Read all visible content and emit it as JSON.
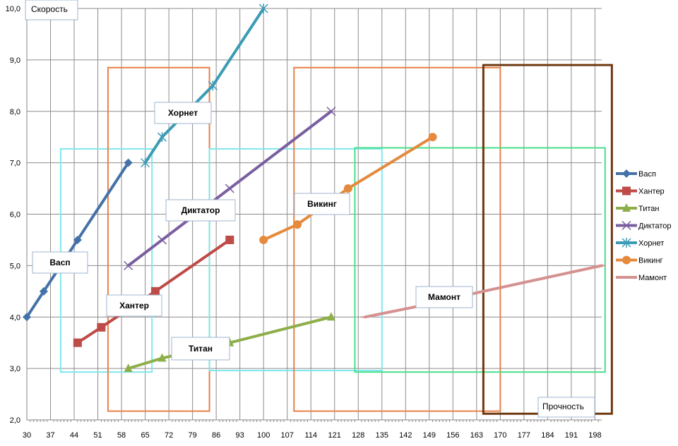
{
  "chart_data": {
    "type": "line",
    "xlabel": "Прочность",
    "ylabel": "Скорость",
    "xlim": [
      30,
      200
    ],
    "ylim": [
      2.0,
      10.0
    ],
    "x_ticks": [
      30,
      37,
      44,
      51,
      58,
      65,
      72,
      79,
      86,
      93,
      100,
      107,
      114,
      121,
      128,
      135,
      142,
      149,
      156,
      163,
      170,
      177,
      184,
      191,
      198
    ],
    "y_ticks": [
      2.0,
      3.0,
      4.0,
      5.0,
      6.0,
      7.0,
      8.0,
      9.0,
      10.0
    ],
    "y_tick_labels": [
      "2,0",
      "3,0",
      "4,0",
      "5,0",
      "6,0",
      "7,0",
      "8,0",
      "9,0",
      "10,0"
    ],
    "grid": "vertical and horizontal",
    "legend_position": "right",
    "series": [
      {
        "name": "Васп",
        "color": "#4472A8",
        "marker": "diamond",
        "points": [
          [
            30,
            4.0
          ],
          [
            35,
            4.5
          ],
          [
            45,
            5.5
          ],
          [
            60,
            7.0
          ]
        ]
      },
      {
        "name": "Хантер",
        "color": "#BE4B48",
        "marker": "square",
        "points": [
          [
            45,
            3.5
          ],
          [
            52,
            3.8
          ],
          [
            68,
            4.5
          ],
          [
            90,
            5.5
          ]
        ]
      },
      {
        "name": "Титан",
        "color": "#8EAE4A",
        "marker": "triangle",
        "points": [
          [
            60,
            3.0
          ],
          [
            70,
            3.2
          ],
          [
            90,
            3.5
          ],
          [
            120,
            4.0
          ]
        ]
      },
      {
        "name": "Диктатор",
        "color": "#7A5FA0",
        "marker": "x",
        "points": [
          [
            60,
            5.0
          ],
          [
            70,
            5.5
          ],
          [
            90,
            6.5
          ],
          [
            120,
            8.0
          ]
        ]
      },
      {
        "name": "Хорнет",
        "color": "#3C9BB5",
        "marker": "star",
        "points": [
          [
            65,
            7.0
          ],
          [
            70,
            7.5
          ],
          [
            85,
            8.5
          ],
          [
            100,
            10.0
          ]
        ]
      },
      {
        "name": "Викинг",
        "color": "#E58A3C",
        "marker": "circle",
        "points": [
          [
            100,
            5.5
          ],
          [
            110,
            5.8
          ],
          [
            125,
            6.5
          ],
          [
            150,
            7.5
          ]
        ]
      },
      {
        "name": "Мамонт",
        "color": "#D49190",
        "marker": "dash",
        "points": [
          [
            130,
            4.0
          ],
          [
            145,
            4.2
          ],
          [
            165,
            4.5
          ],
          [
            200,
            5.0
          ]
        ]
      }
    ],
    "annotations": [
      {
        "text": "Васп"
      },
      {
        "text": "Хантер"
      },
      {
        "text": "Титан"
      },
      {
        "text": "Диктатор"
      },
      {
        "text": "Хорнет"
      },
      {
        "text": "Викинг"
      },
      {
        "text": "Мамонт"
      }
    ],
    "region_boxes": [
      {
        "color": "#7FE8EE",
        "x": [
          40,
          67
        ],
        "y": [
          2.93,
          7.27
        ]
      },
      {
        "color": "#E9804A",
        "x": [
          54,
          84
        ],
        "y": [
          2.17,
          8.85
        ]
      },
      {
        "color": "#7FE8EE",
        "x": [
          84,
          135
        ],
        "y": [
          2.96,
          7.27
        ]
      },
      {
        "color": "#E9804A",
        "x": [
          109,
          170
        ],
        "y": [
          2.17,
          8.85
        ]
      },
      {
        "color": "#47E089",
        "x": [
          127,
          201
        ],
        "y": [
          2.93,
          7.29
        ]
      },
      {
        "color": "#6F3A12",
        "x": [
          165,
          203
        ],
        "y": [
          2.12,
          8.9
        ]
      }
    ]
  }
}
